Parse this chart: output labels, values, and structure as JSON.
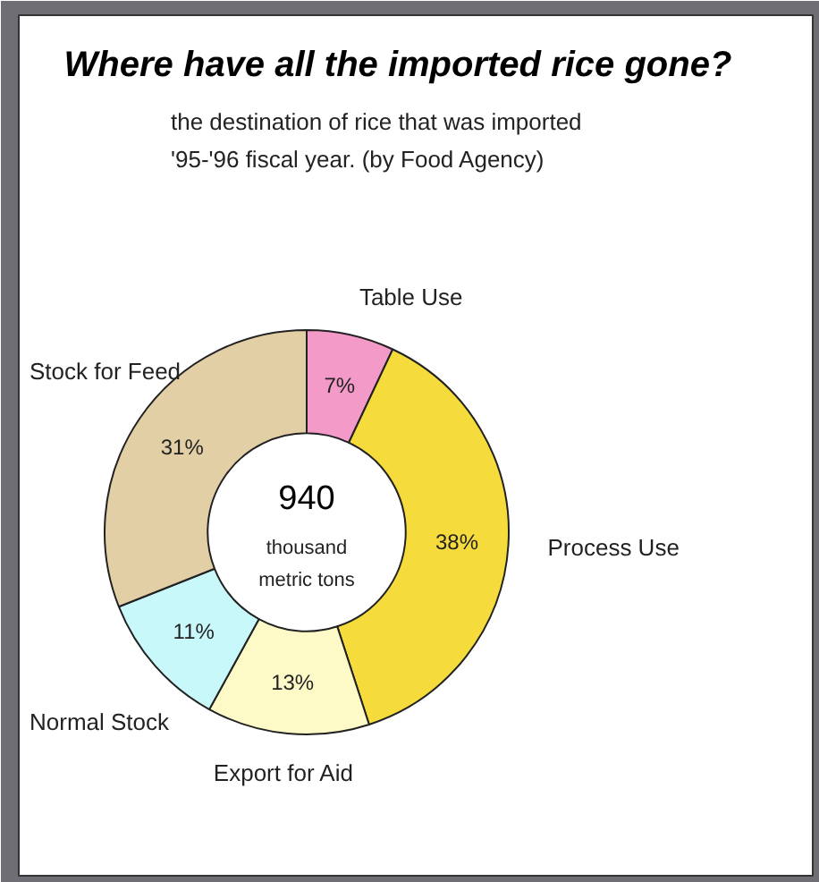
{
  "chart_data": {
    "type": "donut",
    "title": "Where have all the imported rice gone?",
    "subtitle": "the destination of rice that was imported\n'95-'96 fiscal year. (by Food Agency)",
    "categories": [
      "Table Use",
      "Process Use",
      "Export for Aid",
      "Normal Stock",
      "Stock for Feed"
    ],
    "values": [
      7,
      38,
      13,
      11,
      31
    ],
    "value_labels": [
      "7%",
      "38%",
      "13%",
      "11%",
      "31%"
    ],
    "colors": [
      "#f49ac8",
      "#f5dc3c",
      "#fdfac8",
      "#c8f8fa",
      "#e2cfa6"
    ],
    "annotations": [
      "940",
      "thousand\nmetric tons"
    ]
  }
}
